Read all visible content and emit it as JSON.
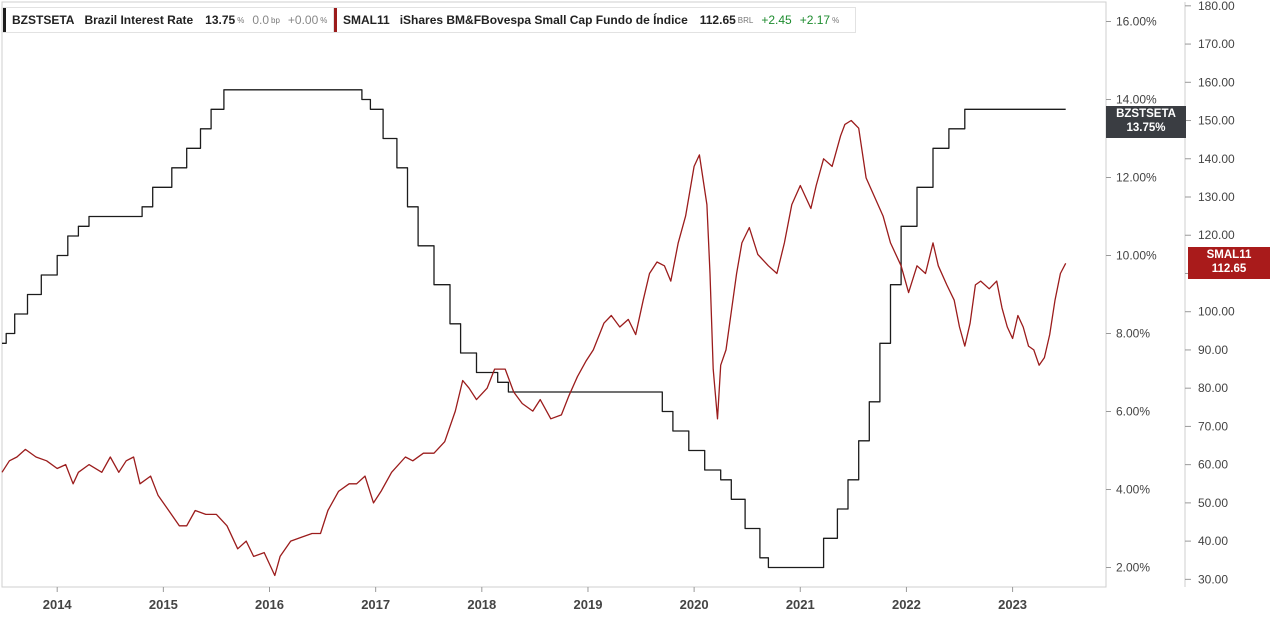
{
  "legend": [
    {
      "ticker": "BZSTSETA",
      "name": "Brazil Interest Rate",
      "value": "13.75",
      "unit": "%",
      "change1": "0.0",
      "change1_unit": "bp",
      "change2": "+0.00",
      "change2_unit": "%",
      "color": "#1c1c1c"
    },
    {
      "ticker": "SMAL11",
      "name": "iShares BM&FBovespa Small Cap Fundo de Índice",
      "value": "112.65",
      "unit": "BRL",
      "change1": "+2.45",
      "change1_unit": "",
      "change2": "+2.17",
      "change2_unit": "%",
      "color": "#9b1c1c"
    }
  ],
  "badges": {
    "rate": {
      "line1": "BZSTSETA",
      "line2": "13.75%",
      "color": "#3a3d42"
    },
    "smal": {
      "line1": "SMAL11",
      "line2": "112.65",
      "color": "#a91b1b"
    }
  },
  "chart_data": {
    "type": "line",
    "x_ticks": [
      "2014",
      "2015",
      "2016",
      "2017",
      "2018",
      "2019",
      "2020",
      "2021",
      "2022",
      "2023"
    ],
    "y_left_ticks": [
      "2.00%",
      "4.00%",
      "6.00%",
      "8.00%",
      "10.00%",
      "12.00%",
      "14.00%",
      "16.00%"
    ],
    "y_right_ticks": [
      "30.00",
      "40.00",
      "50.00",
      "60.00",
      "70.00",
      "80.00",
      "90.00",
      "100.00",
      "110.00",
      "120.00",
      "130.00",
      "140.00",
      "150.00",
      "160.00",
      "170.00",
      "180.00"
    ],
    "ylim_rate": [
      1.5,
      16.5
    ],
    "ylim_price": [
      28,
      181
    ],
    "xlim": [
      2013.48,
      2023.88
    ],
    "series": [
      {
        "name": "BZSTSETA",
        "axis": "left",
        "color": "#1c1c1c",
        "step": true,
        "points": [
          [
            2013.48,
            7.75
          ],
          [
            2013.52,
            8.0
          ],
          [
            2013.6,
            8.5
          ],
          [
            2013.72,
            9.0
          ],
          [
            2013.85,
            9.5
          ],
          [
            2014.0,
            10.0
          ],
          [
            2014.1,
            10.5
          ],
          [
            2014.2,
            10.75
          ],
          [
            2014.3,
            11.0
          ],
          [
            2014.8,
            11.25
          ],
          [
            2014.9,
            11.75
          ],
          [
            2015.08,
            12.25
          ],
          [
            2015.22,
            12.75
          ],
          [
            2015.35,
            13.25
          ],
          [
            2015.45,
            13.75
          ],
          [
            2015.57,
            14.25
          ],
          [
            2016.8,
            14.25
          ],
          [
            2016.87,
            14.0
          ],
          [
            2016.95,
            13.75
          ],
          [
            2017.07,
            13.0
          ],
          [
            2017.2,
            12.25
          ],
          [
            2017.3,
            11.25
          ],
          [
            2017.4,
            10.25
          ],
          [
            2017.55,
            9.25
          ],
          [
            2017.7,
            8.25
          ],
          [
            2017.8,
            7.5
          ],
          [
            2017.95,
            7.0
          ],
          [
            2018.15,
            6.75
          ],
          [
            2018.25,
            6.5
          ],
          [
            2019.6,
            6.5
          ],
          [
            2019.7,
            6.0
          ],
          [
            2019.8,
            5.5
          ],
          [
            2019.95,
            5.0
          ],
          [
            2020.1,
            4.5
          ],
          [
            2020.25,
            4.25
          ],
          [
            2020.35,
            3.75
          ],
          [
            2020.48,
            3.0
          ],
          [
            2020.62,
            2.25
          ],
          [
            2020.7,
            2.0
          ],
          [
            2021.15,
            2.0
          ],
          [
            2021.22,
            2.75
          ],
          [
            2021.35,
            3.5
          ],
          [
            2021.45,
            4.25
          ],
          [
            2021.55,
            5.25
          ],
          [
            2021.65,
            6.25
          ],
          [
            2021.75,
            7.75
          ],
          [
            2021.85,
            9.25
          ],
          [
            2021.95,
            10.75
          ],
          [
            2022.1,
            11.75
          ],
          [
            2022.25,
            12.75
          ],
          [
            2022.4,
            13.25
          ],
          [
            2022.55,
            13.75
          ],
          [
            2022.62,
            13.75
          ],
          [
            2023.5,
            13.75
          ]
        ]
      },
      {
        "name": "SMAL11",
        "axis": "right",
        "color": "#9b1c1c",
        "step": false,
        "points": [
          [
            2013.48,
            58
          ],
          [
            2013.55,
            61
          ],
          [
            2013.62,
            62
          ],
          [
            2013.7,
            64
          ],
          [
            2013.8,
            62
          ],
          [
            2013.9,
            61
          ],
          [
            2014.0,
            59
          ],
          [
            2014.08,
            60
          ],
          [
            2014.15,
            55
          ],
          [
            2014.2,
            58
          ],
          [
            2014.3,
            60
          ],
          [
            2014.42,
            58
          ],
          [
            2014.5,
            62
          ],
          [
            2014.58,
            58
          ],
          [
            2014.65,
            61
          ],
          [
            2014.72,
            62
          ],
          [
            2014.78,
            55
          ],
          [
            2014.88,
            57
          ],
          [
            2014.95,
            52
          ],
          [
            2015.05,
            48
          ],
          [
            2015.15,
            44
          ],
          [
            2015.22,
            44
          ],
          [
            2015.3,
            48
          ],
          [
            2015.4,
            47
          ],
          [
            2015.5,
            47
          ],
          [
            2015.6,
            44
          ],
          [
            2015.7,
            38
          ],
          [
            2015.78,
            40
          ],
          [
            2015.85,
            36
          ],
          [
            2015.95,
            37
          ],
          [
            2016.05,
            31
          ],
          [
            2016.1,
            36
          ],
          [
            2016.2,
            40
          ],
          [
            2016.3,
            41
          ],
          [
            2016.4,
            42
          ],
          [
            2016.48,
            42
          ],
          [
            2016.55,
            48
          ],
          [
            2016.65,
            53
          ],
          [
            2016.75,
            55
          ],
          [
            2016.82,
            55
          ],
          [
            2016.9,
            57
          ],
          [
            2016.98,
            50
          ],
          [
            2017.05,
            53
          ],
          [
            2017.15,
            58
          ],
          [
            2017.28,
            62
          ],
          [
            2017.35,
            61
          ],
          [
            2017.45,
            63
          ],
          [
            2017.55,
            63
          ],
          [
            2017.65,
            66
          ],
          [
            2017.75,
            74
          ],
          [
            2017.82,
            82
          ],
          [
            2017.88,
            80
          ],
          [
            2017.95,
            77
          ],
          [
            2018.05,
            80
          ],
          [
            2018.12,
            85
          ],
          [
            2018.22,
            85
          ],
          [
            2018.3,
            79
          ],
          [
            2018.38,
            76
          ],
          [
            2018.48,
            74
          ],
          [
            2018.55,
            77
          ],
          [
            2018.65,
            72
          ],
          [
            2018.75,
            73
          ],
          [
            2018.82,
            78
          ],
          [
            2018.9,
            83
          ],
          [
            2018.98,
            87
          ],
          [
            2019.05,
            90
          ],
          [
            2019.15,
            97
          ],
          [
            2019.22,
            99
          ],
          [
            2019.3,
            96
          ],
          [
            2019.38,
            98
          ],
          [
            2019.45,
            94
          ],
          [
            2019.52,
            103
          ],
          [
            2019.58,
            110
          ],
          [
            2019.65,
            113
          ],
          [
            2019.72,
            112
          ],
          [
            2019.78,
            108
          ],
          [
            2019.85,
            118
          ],
          [
            2019.92,
            125
          ],
          [
            2020.0,
            138
          ],
          [
            2020.05,
            141
          ],
          [
            2020.12,
            128
          ],
          [
            2020.15,
            110
          ],
          [
            2020.18,
            85
          ],
          [
            2020.22,
            72
          ],
          [
            2020.25,
            86
          ],
          [
            2020.3,
            90
          ],
          [
            2020.35,
            100
          ],
          [
            2020.4,
            110
          ],
          [
            2020.45,
            118
          ],
          [
            2020.52,
            122
          ],
          [
            2020.6,
            115
          ],
          [
            2020.7,
            112
          ],
          [
            2020.78,
            110
          ],
          [
            2020.85,
            118
          ],
          [
            2020.92,
            128
          ],
          [
            2021.0,
            133
          ],
          [
            2021.05,
            130
          ],
          [
            2021.1,
            127
          ],
          [
            2021.15,
            133
          ],
          [
            2021.22,
            140
          ],
          [
            2021.3,
            138
          ],
          [
            2021.38,
            146
          ],
          [
            2021.42,
            149
          ],
          [
            2021.48,
            150
          ],
          [
            2021.55,
            148
          ],
          [
            2021.62,
            135
          ],
          [
            2021.7,
            130
          ],
          [
            2021.78,
            125
          ],
          [
            2021.85,
            118
          ],
          [
            2021.95,
            112
          ],
          [
            2022.02,
            105
          ],
          [
            2022.1,
            112
          ],
          [
            2022.18,
            110
          ],
          [
            2022.25,
            118
          ],
          [
            2022.3,
            112
          ],
          [
            2022.38,
            107
          ],
          [
            2022.45,
            103
          ],
          [
            2022.5,
            96
          ],
          [
            2022.55,
            91
          ],
          [
            2022.6,
            97
          ],
          [
            2022.65,
            107
          ],
          [
            2022.7,
            108
          ],
          [
            2022.78,
            106
          ],
          [
            2022.85,
            108
          ],
          [
            2022.9,
            101
          ],
          [
            2022.95,
            96
          ],
          [
            2023.0,
            93
          ],
          [
            2023.05,
            99
          ],
          [
            2023.1,
            96
          ],
          [
            2023.15,
            91
          ],
          [
            2023.2,
            90
          ],
          [
            2023.25,
            86
          ],
          [
            2023.3,
            88
          ],
          [
            2023.35,
            94
          ],
          [
            2023.4,
            103
          ],
          [
            2023.45,
            110
          ],
          [
            2023.5,
            112.65
          ]
        ]
      }
    ]
  }
}
